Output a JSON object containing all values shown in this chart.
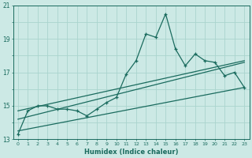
{
  "xlabel": "Humidex (Indice chaleur)",
  "bg_color": "#cce9e5",
  "grid_color": "#aad4ce",
  "line_color": "#1a6b5e",
  "xlim": [
    -0.5,
    23.5
  ],
  "ylim": [
    13,
    21
  ],
  "xticks": [
    0,
    1,
    2,
    3,
    4,
    5,
    6,
    7,
    8,
    9,
    10,
    11,
    12,
    13,
    14,
    15,
    16,
    17,
    18,
    19,
    20,
    21,
    22,
    23
  ],
  "yticks": [
    13,
    14,
    15,
    16,
    17,
    18,
    19,
    20,
    21
  ],
  "ytick_labels": [
    "13",
    "",
    "15",
    "",
    "17",
    "",
    "19",
    "",
    "21"
  ],
  "curve1_x": [
    0,
    1,
    2,
    3,
    4,
    5,
    6,
    7,
    8,
    9,
    10,
    11,
    12,
    13,
    14,
    15,
    16,
    17,
    18,
    19,
    20,
    21,
    22,
    23
  ],
  "curve1_y": [
    13.3,
    14.7,
    15.0,
    15.0,
    14.8,
    14.8,
    14.7,
    14.4,
    14.8,
    15.2,
    15.5,
    16.9,
    17.7,
    19.3,
    19.1,
    20.5,
    18.4,
    17.4,
    18.1,
    17.7,
    17.6,
    16.8,
    17.0,
    16.1
  ],
  "line2_x": [
    0,
    23
  ],
  "line2_y": [
    14.2,
    17.6
  ],
  "line3_x": [
    0,
    23
  ],
  "line3_y": [
    14.7,
    17.7
  ],
  "line4_x": [
    0,
    23
  ],
  "line4_y": [
    13.5,
    16.1
  ]
}
